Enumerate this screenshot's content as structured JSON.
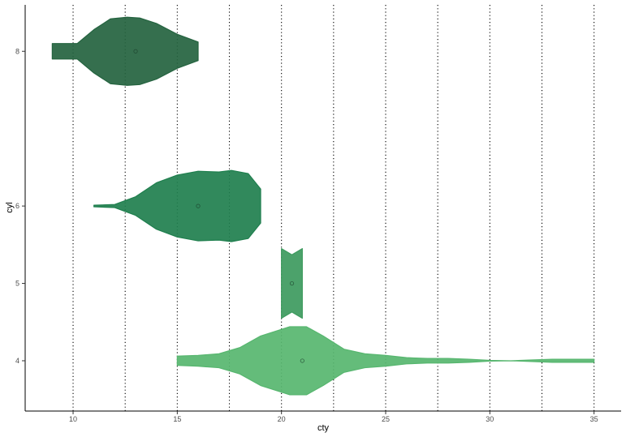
{
  "chart_data": {
    "type": "violin",
    "title": "",
    "xlabel": "cty",
    "ylabel": "cyl",
    "xlim": [
      7.7,
      36.3
    ],
    "ylim": [
      3.35,
      8.6
    ],
    "x_ticks": [
      10,
      15,
      20,
      25,
      30,
      35
    ],
    "x_tick_labels": [
      "10",
      "15",
      "20",
      "25",
      "30",
      "35"
    ],
    "y_ticks": [
      4,
      5,
      6,
      8
    ],
    "y_tick_labels": [
      "4",
      "5",
      "6",
      "8"
    ],
    "grid": {
      "horizontal": false,
      "vertical_dotted_x": [
        10,
        12.5,
        15,
        17.5,
        20,
        22.5,
        25,
        27.5,
        30,
        32.5,
        35
      ]
    },
    "legend": "none",
    "series": [
      {
        "cyl": 8,
        "color": "#24633f",
        "mean": 13,
        "profile": [
          [
            9,
            0.1
          ],
          [
            10.2,
            0.1
          ],
          [
            11,
            0.28
          ],
          [
            11.8,
            0.42
          ],
          [
            12.6,
            0.44
          ],
          [
            13.2,
            0.43
          ],
          [
            14,
            0.36
          ],
          [
            15,
            0.22
          ],
          [
            16,
            0.12
          ]
        ]
      },
      {
        "cyl": 6,
        "color": "#1f7f4e",
        "mean": 16,
        "profile": [
          [
            11,
            0.01
          ],
          [
            12,
            0.02
          ],
          [
            13,
            0.12
          ],
          [
            14,
            0.3
          ],
          [
            15,
            0.4
          ],
          [
            16,
            0.45
          ],
          [
            17,
            0.44
          ],
          [
            17.6,
            0.46
          ],
          [
            18.4,
            0.42
          ],
          [
            19,
            0.22
          ]
        ]
      },
      {
        "cyl": 5,
        "color": "#3d9a5e",
        "mean": 20.5,
        "profile": [
          [
            20,
            0.45
          ],
          [
            20.5,
            0.37
          ],
          [
            21,
            0.45
          ]
        ]
      },
      {
        "cyl": 4,
        "color": "#57b66f",
        "mean": 21,
        "profile": [
          [
            15,
            0.06
          ],
          [
            16,
            0.07
          ],
          [
            17,
            0.09
          ],
          [
            18,
            0.17
          ],
          [
            19,
            0.32
          ],
          [
            20.4,
            0.44
          ],
          [
            21.2,
            0.44
          ],
          [
            22,
            0.32
          ],
          [
            23,
            0.15
          ],
          [
            24,
            0.09
          ],
          [
            25,
            0.07
          ],
          [
            26,
            0.04
          ],
          [
            27,
            0.03
          ],
          [
            28,
            0.03
          ],
          [
            29,
            0.02
          ],
          [
            30,
            0.005
          ],
          [
            31,
            0.0
          ],
          [
            32,
            0.01
          ],
          [
            33,
            0.02
          ],
          [
            34,
            0.02
          ],
          [
            35,
            0.02
          ]
        ]
      }
    ]
  }
}
